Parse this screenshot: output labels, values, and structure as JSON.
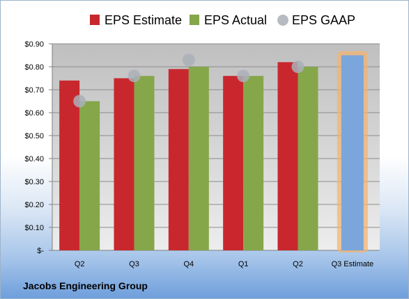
{
  "company": "Jacobs Engineering Group",
  "chart_data": {
    "type": "bar",
    "categories": [
      "Q2",
      "Q3",
      "Q4",
      "Q1",
      "Q2",
      "Q3 Estimate"
    ],
    "series": [
      {
        "name": "EPS Estimate",
        "color": "#c8282d",
        "values": [
          0.74,
          0.75,
          0.79,
          0.76,
          0.82,
          null
        ]
      },
      {
        "name": "EPS Actual",
        "color": "#86a64a",
        "values": [
          0.65,
          0.76,
          0.8,
          0.76,
          0.8,
          null
        ]
      },
      {
        "name": "EPS GAAP",
        "color": "#aab0b8",
        "marker": "circle",
        "values": [
          0.65,
          0.76,
          0.83,
          0.76,
          0.8,
          null
        ]
      }
    ],
    "estimate_bar": {
      "category": "Q3 Estimate",
      "value": 0.85,
      "color": "#7aa6dc",
      "glow_color": "#f5b26b"
    },
    "y_ticks": [
      "$-",
      "$0.10",
      "$0.20",
      "$0.30",
      "$0.40",
      "$0.50",
      "$0.60",
      "$0.70",
      "$0.80",
      "$0.90"
    ],
    "ylim": [
      0,
      0.9
    ],
    "grid": true,
    "legend_position": "top"
  }
}
